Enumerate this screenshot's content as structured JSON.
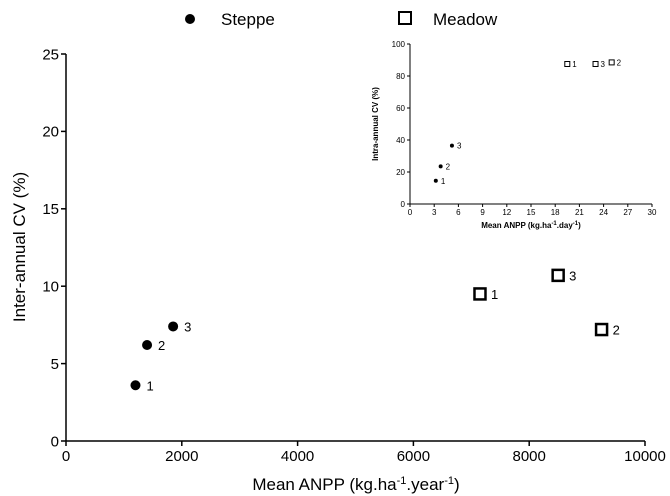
{
  "chart_data": [
    {
      "type": "scatter",
      "title": "",
      "xlabel": "Mean ANPP (kg.ha",
      "xlabel_sup1": "-1",
      "xlabel_mid": ".year",
      "xlabel_sup2": "-1",
      "xlabel_end": ")",
      "ylabel": "Inter-annual CV (%)",
      "xlim": [
        0,
        10000
      ],
      "ylim": [
        0,
        25
      ],
      "xticks": [
        0,
        2000,
        4000,
        6000,
        8000,
        10000
      ],
      "yticks": [
        0,
        5,
        10,
        15,
        20,
        25
      ],
      "legend": {
        "placement": "top",
        "entries": [
          {
            "name": "Steppe",
            "marker": "filled-circle"
          },
          {
            "name": "Meadow",
            "marker": "open-square"
          }
        ]
      },
      "series": [
        {
          "name": "Steppe",
          "color": "#000000",
          "points": [
            {
              "x": 1200,
              "y": 3.6,
              "label": "1"
            },
            {
              "x": 1400,
              "y": 6.2,
              "label": "2"
            },
            {
              "x": 1850,
              "y": 7.4,
              "label": "3"
            }
          ]
        },
        {
          "name": "Meadow",
          "color": "#000000",
          "points": [
            {
              "x": 7150,
              "y": 9.5,
              "label": "1"
            },
            {
              "x": 9250,
              "y": 7.2,
              "label": "2"
            },
            {
              "x": 8500,
              "y": 10.7,
              "label": "3"
            }
          ]
        }
      ]
    },
    {
      "type": "scatter",
      "title": "",
      "xlabel": "Mean ANPP (kg.ha",
      "xlabel_sup1": "-1",
      "xlabel_mid": ".day",
      "xlabel_sup2": "-1",
      "xlabel_end": ")",
      "ylabel": "Intra-annual CV (%)",
      "xlim": [
        0,
        30
      ],
      "ylim": [
        0,
        100
      ],
      "xticks": [
        0,
        3,
        6,
        9,
        12,
        15,
        18,
        21,
        24,
        27,
        30
      ],
      "yticks": [
        0,
        20,
        40,
        60,
        80,
        100
      ],
      "series": [
        {
          "name": "Steppe",
          "color": "#000000",
          "points": [
            {
              "x": 3.2,
              "y": 14.5,
              "label": "1"
            },
            {
              "x": 3.8,
              "y": 23.5,
              "label": "2"
            },
            {
              "x": 5.2,
              "y": 36.5,
              "label": "3"
            }
          ]
        },
        {
          "name": "Meadow",
          "color": "#000000",
          "points": [
            {
              "x": 19.5,
              "y": 87.5,
              "label": "1"
            },
            {
              "x": 25.0,
              "y": 88.5,
              "label": "2"
            },
            {
              "x": 23.0,
              "y": 87.5,
              "label": "3"
            }
          ]
        }
      ]
    }
  ]
}
